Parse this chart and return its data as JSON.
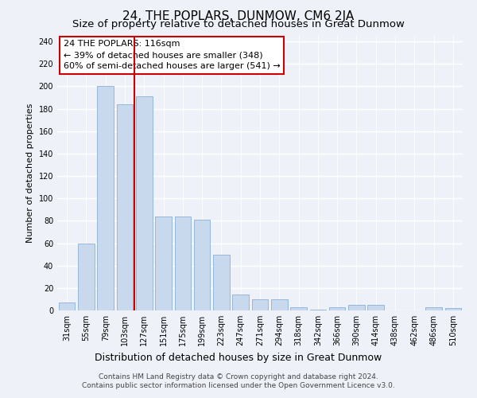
{
  "title": "24, THE POPLARS, DUNMOW, CM6 2JA",
  "subtitle": "Size of property relative to detached houses in Great Dunmow",
  "xlabel": "Distribution of detached houses by size in Great Dunmow",
  "ylabel": "Number of detached properties",
  "categories": [
    "31sqm",
    "55sqm",
    "79sqm",
    "103sqm",
    "127sqm",
    "151sqm",
    "175sqm",
    "199sqm",
    "223sqm",
    "247sqm",
    "271sqm",
    "294sqm",
    "318sqm",
    "342sqm",
    "366sqm",
    "390sqm",
    "414sqm",
    "438sqm",
    "462sqm",
    "486sqm",
    "510sqm"
  ],
  "bar_values": [
    7,
    60,
    200,
    184,
    191,
    84,
    84,
    81,
    50,
    14,
    10,
    10,
    3,
    1,
    3,
    5,
    5,
    0,
    0,
    3,
    2
  ],
  "bar_color": "#c8d9ee",
  "bar_edgecolor": "#8ab0d4",
  "vline_x": 3.5,
  "vline_color": "#cc0000",
  "annotation_line1": "24 THE POPLARS: 116sqm",
  "annotation_line2": "← 39% of detached houses are smaller (348)",
  "annotation_line3": "60% of semi-detached houses are larger (541) →",
  "ylim": [
    0,
    245
  ],
  "yticks": [
    0,
    20,
    40,
    60,
    80,
    100,
    120,
    140,
    160,
    180,
    200,
    220,
    240
  ],
  "background_color": "#eef2f8",
  "grid_color": "#ffffff",
  "footer_line1": "Contains HM Land Registry data © Crown copyright and database right 2024.",
  "footer_line2": "Contains public sector information licensed under the Open Government Licence v3.0.",
  "title_fontsize": 11,
  "subtitle_fontsize": 9.5,
  "xlabel_fontsize": 9,
  "ylabel_fontsize": 8,
  "tick_fontsize": 7,
  "annotation_fontsize": 8,
  "footer_fontsize": 6.5
}
